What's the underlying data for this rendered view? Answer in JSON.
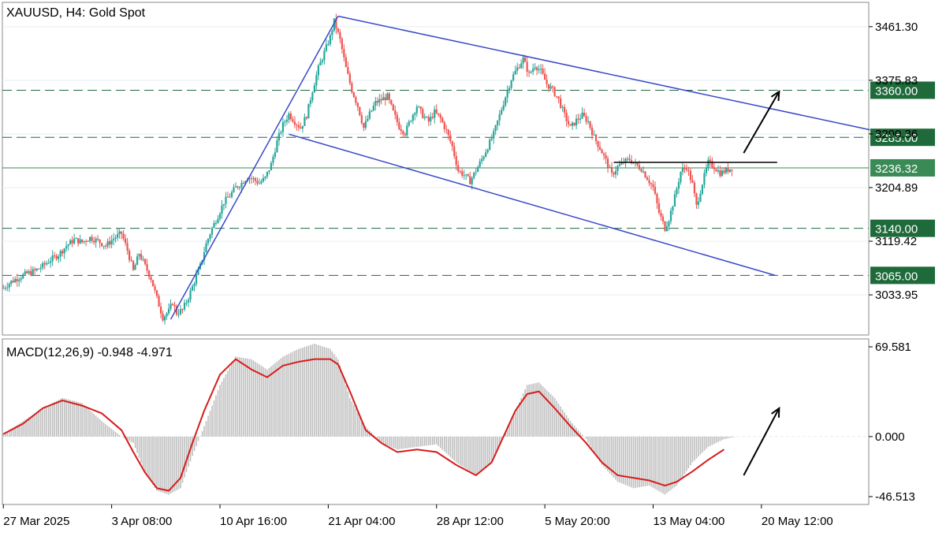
{
  "chart_data": [
    {
      "type": "candlestick",
      "title": "XAUUSD, H4:  Gold Spot",
      "symbol": "XAUUSD",
      "timeframe": "H4",
      "instrument_name": "Gold Spot",
      "ylim": [
        2970,
        3500
      ],
      "y_tick_labels": [
        "3461.30",
        "3375.83",
        "3290.36",
        "3204.89",
        "3119.42",
        "3033.95"
      ],
      "y_ticks": [
        3461.3,
        3375.83,
        3290.36,
        3204.89,
        3119.42,
        3033.95
      ],
      "x_tick_labels": [
        "27 Mar 2025",
        "3 Apr 08:00",
        "10 Apr 16:00",
        "21 Apr 04:00",
        "28 Apr 12:00",
        "5 May 20:00",
        "13 May 04:00",
        "20 May 12:00"
      ],
      "current_price": {
        "label": "3236.32",
        "value": 3236.32
      },
      "levels": [
        {
          "label": "3360.00",
          "value": 3360.0,
          "style": "dashed"
        },
        {
          "label": "3285.00",
          "value": 3285.0,
          "style": "dashed"
        },
        {
          "label": "3140.00",
          "value": 3140.0,
          "style": "dashed"
        },
        {
          "label": "3065.00",
          "value": 3065.0,
          "style": "dashed"
        }
      ],
      "price_path": [
        [
          0,
          3045
        ],
        [
          4,
          3055
        ],
        [
          8,
          3062
        ],
        [
          12,
          3068
        ],
        [
          16,
          3072
        ],
        [
          20,
          3080
        ],
        [
          24,
          3090
        ],
        [
          28,
          3098
        ],
        [
          32,
          3112
        ],
        [
          36,
          3122
        ],
        [
          40,
          3118
        ],
        [
          44,
          3125
        ],
        [
          48,
          3120
        ],
        [
          52,
          3112
        ],
        [
          56,
          3124
        ],
        [
          60,
          3132
        ],
        [
          63,
          3105
        ],
        [
          66,
          3072
        ],
        [
          69,
          3100
        ],
        [
          72,
          3080
        ],
        [
          75,
          3060
        ],
        [
          78,
          3028
        ],
        [
          81,
          2998
        ],
        [
          84,
          3008
        ],
        [
          86,
          3022
        ],
        [
          88,
          3005
        ],
        [
          91,
          3010
        ],
        [
          94,
          3030
        ],
        [
          97,
          3055
        ],
        [
          100,
          3080
        ],
        [
          103,
          3115
        ],
        [
          106,
          3140
        ],
        [
          109,
          3160
        ],
        [
          112,
          3182
        ],
        [
          115,
          3192
        ],
        [
          118,
          3205
        ],
        [
          121,
          3212
        ],
        [
          124,
          3222
        ],
        [
          127,
          3218
        ],
        [
          130,
          3212
        ],
        [
          133,
          3220
        ],
        [
          136,
          3242
        ],
        [
          139,
          3278
        ],
        [
          142,
          3305
        ],
        [
          145,
          3322
        ],
        [
          148,
          3310
        ],
        [
          151,
          3300
        ],
        [
          154,
          3320
        ],
        [
          157,
          3360
        ],
        [
          160,
          3395
        ],
        [
          163,
          3420
        ],
        [
          166,
          3445
        ],
        [
          168,
          3470
        ],
        [
          171,
          3440
        ],
        [
          174,
          3395
        ],
        [
          177,
          3360
        ],
        [
          180,
          3335
        ],
        [
          183,
          3300
        ],
        [
          186,
          3322
        ],
        [
          189,
          3340
        ],
        [
          192,
          3345
        ],
        [
          195,
          3350
        ],
        [
          198,
          3325
        ],
        [
          201,
          3302
        ],
        [
          204,
          3292
        ],
        [
          207,
          3315
        ],
        [
          210,
          3335
        ],
        [
          213,
          3320
        ],
        [
          216,
          3310
        ],
        [
          219,
          3325
        ],
        [
          222,
          3315
        ],
        [
          225,
          3295
        ],
        [
          228,
          3270
        ],
        [
          231,
          3232
        ],
        [
          234,
          3225
        ],
        [
          237,
          3215
        ],
        [
          240,
          3232
        ],
        [
          243,
          3250
        ],
        [
          246,
          3270
        ],
        [
          249,
          3290
        ],
        [
          252,
          3320
        ],
        [
          255,
          3350
        ],
        [
          258,
          3378
        ],
        [
          261,
          3395
        ],
        [
          264,
          3410
        ],
        [
          267,
          3385
        ],
        [
          270,
          3400
        ],
        [
          273,
          3390
        ],
        [
          276,
          3370
        ],
        [
          279,
          3360
        ],
        [
          282,
          3345
        ],
        [
          285,
          3320
        ],
        [
          288,
          3300
        ],
        [
          291,
          3312
        ],
        [
          294,
          3320
        ],
        [
          297,
          3310
        ],
        [
          300,
          3285
        ],
        [
          303,
          3268
        ],
        [
          306,
          3248
        ],
        [
          309,
          3225
        ],
        [
          312,
          3238
        ],
        [
          315,
          3245
        ],
        [
          318,
          3250
        ],
        [
          321,
          3242
        ],
        [
          324,
          3235
        ],
        [
          327,
          3220
        ],
        [
          330,
          3205
        ],
        [
          333,
          3165
        ],
        [
          336,
          3140
        ],
        [
          338,
          3155
        ],
        [
          341,
          3190
        ],
        [
          344,
          3230
        ],
        [
          347,
          3238
        ],
        [
          350,
          3210
        ],
        [
          352,
          3175
        ],
        [
          355,
          3212
        ],
        [
          358,
          3245
        ],
        [
          361,
          3238
        ],
        [
          364,
          3228
        ],
        [
          367,
          3232
        ],
        [
          370,
          3236.32
        ]
      ],
      "lines": [
        {
          "name": "channel-upper",
          "points": [
            [
              170,
              3478
            ],
            [
              440,
              3297
            ]
          ]
        },
        {
          "name": "channel-lower",
          "points": [
            [
              145,
              3290
            ],
            [
              392,
              3065
            ]
          ]
        },
        {
          "name": "rally-trendline",
          "points": [
            [
              85,
              2995
            ],
            [
              170,
              3478
            ]
          ]
        },
        {
          "name": "resistance",
          "points": [
            [
              310,
              3245
            ],
            [
              393,
              3245
            ]
          ]
        }
      ],
      "arrow": {
        "from": [
          376,
          3260
        ],
        "to": [
          394,
          3358
        ]
      }
    },
    {
      "type": "line",
      "name": "MACD(12,26,9) -0.948 -4.971",
      "indicator": "MACD(12,26,9)",
      "value1": "-0.948",
      "value2": "-4.971",
      "ylim": [
        -46.513,
        69.581
      ],
      "y_tick_labels": [
        "69.581",
        "0.000",
        "-46.513"
      ],
      "y_ticks": [
        69.581,
        0.0,
        -46.513
      ],
      "histogram": [
        [
          0,
          2
        ],
        [
          10,
          12
        ],
        [
          20,
          22
        ],
        [
          30,
          30
        ],
        [
          40,
          26
        ],
        [
          50,
          12
        ],
        [
          60,
          0
        ],
        [
          66,
          -5
        ],
        [
          72,
          -28
        ],
        [
          78,
          -42
        ],
        [
          84,
          -45
        ],
        [
          90,
          -40
        ],
        [
          96,
          -15
        ],
        [
          102,
          8
        ],
        [
          110,
          40
        ],
        [
          118,
          62
        ],
        [
          126,
          60
        ],
        [
          134,
          52
        ],
        [
          142,
          62
        ],
        [
          150,
          68
        ],
        [
          158,
          72
        ],
        [
          166,
          68
        ],
        [
          170,
          60
        ],
        [
          176,
          30
        ],
        [
          184,
          8
        ],
        [
          192,
          -5
        ],
        [
          200,
          -10
        ],
        [
          210,
          -8
        ],
        [
          220,
          -6
        ],
        [
          230,
          -20
        ],
        [
          240,
          -30
        ],
        [
          248,
          -20
        ],
        [
          254,
          0
        ],
        [
          260,
          20
        ],
        [
          266,
          40
        ],
        [
          272,
          42
        ],
        [
          280,
          30
        ],
        [
          288,
          12
        ],
        [
          296,
          -2
        ],
        [
          304,
          -22
        ],
        [
          312,
          -35
        ],
        [
          320,
          -40
        ],
        [
          328,
          -38
        ],
        [
          336,
          -45
        ],
        [
          342,
          -38
        ],
        [
          350,
          -20
        ],
        [
          358,
          -8
        ],
        [
          366,
          -2
        ],
        [
          372,
          0
        ]
      ],
      "signal_path": [
        [
          0,
          2
        ],
        [
          10,
          10
        ],
        [
          20,
          22
        ],
        [
          30,
          28
        ],
        [
          40,
          24
        ],
        [
          50,
          18
        ],
        [
          60,
          5
        ],
        [
          66,
          -12
        ],
        [
          72,
          -28
        ],
        [
          78,
          -40
        ],
        [
          84,
          -42
        ],
        [
          90,
          -32
        ],
        [
          96,
          -5
        ],
        [
          102,
          20
        ],
        [
          110,
          48
        ],
        [
          118,
          60
        ],
        [
          126,
          52
        ],
        [
          134,
          46
        ],
        [
          142,
          55
        ],
        [
          150,
          58
        ],
        [
          158,
          60
        ],
        [
          166,
          60
        ],
        [
          170,
          56
        ],
        [
          176,
          35
        ],
        [
          184,
          5
        ],
        [
          192,
          -5
        ],
        [
          200,
          -12
        ],
        [
          210,
          -10
        ],
        [
          220,
          -12
        ],
        [
          230,
          -22
        ],
        [
          240,
          -30
        ],
        [
          248,
          -20
        ],
        [
          254,
          0
        ],
        [
          260,
          20
        ],
        [
          266,
          33
        ],
        [
          272,
          35
        ],
        [
          280,
          22
        ],
        [
          288,
          8
        ],
        [
          296,
          -5
        ],
        [
          304,
          -20
        ],
        [
          312,
          -30
        ],
        [
          320,
          -32
        ],
        [
          328,
          -34
        ],
        [
          336,
          -38
        ],
        [
          342,
          -35
        ],
        [
          350,
          -27
        ],
        [
          358,
          -18
        ],
        [
          366,
          -10
        ]
      ],
      "arrow": {
        "from": [
          376,
          -30
        ],
        "to": [
          394,
          22
        ]
      }
    }
  ],
  "colors": {
    "bull": "#26a69a",
    "bear": "#ef5350",
    "channel": "#3a49c7",
    "level": "#1d6b3e",
    "level_label_bg": "#1e6a3a",
    "current_label_bg": "#3a8a56",
    "macd_signal": "#d81b1b",
    "macd_hist": "#bdbdbd",
    "grid": "#e8eef0",
    "axis_text": "#000000"
  }
}
